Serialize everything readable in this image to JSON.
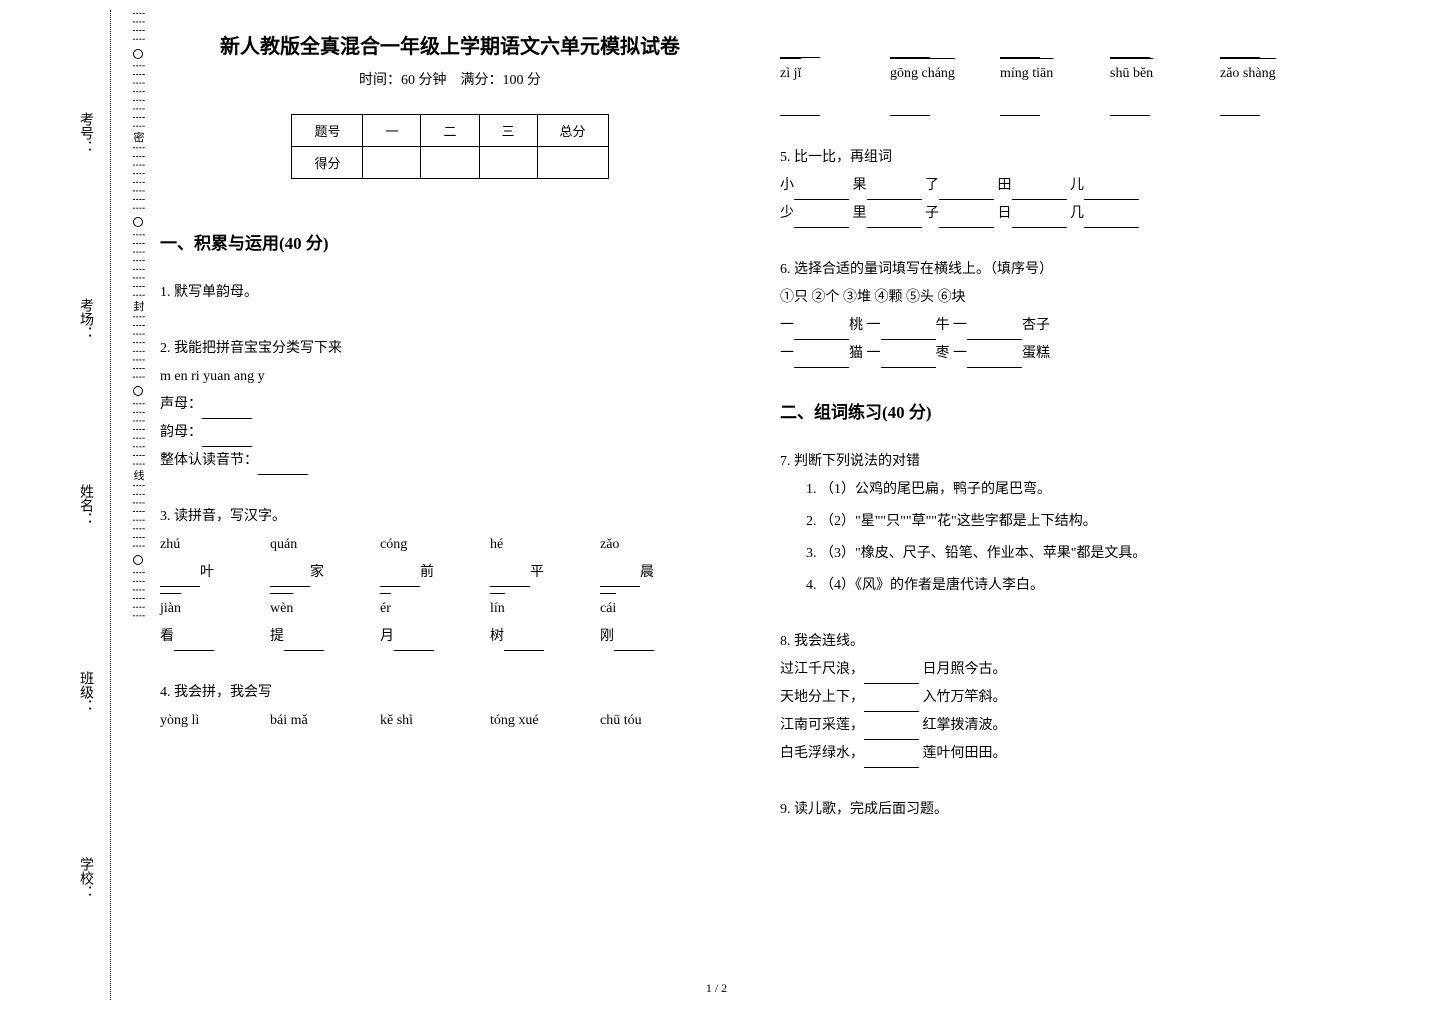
{
  "binding": {
    "labels": [
      "学校：",
      "班级：",
      "姓名：",
      "考场：",
      "考号："
    ],
    "cutline": [
      "密",
      "封",
      "线"
    ]
  },
  "title": "新人教版全真混合一年级上学期语文六单元模拟试卷",
  "subtitle": "时间：60 分钟　满分：100 分",
  "score_table": {
    "headers": [
      "题号",
      "一",
      "二",
      "三",
      "总分"
    ],
    "row_label": "得分"
  },
  "sec1_title": "一、积累与运用(40 分)",
  "sec2_title": "二、组词练习(40 分)",
  "q1": "1.  默写单韵母。",
  "q2": {
    "stem": "2.  我能把拼音宝宝分类写下来",
    "bank": "m en ri yuan ang y",
    "l1": "声母：",
    "l2": "韵母：",
    "l3": "整体认读音节："
  },
  "q3": {
    "stem": "3.  读拼音，写汉字。",
    "row1": [
      {
        "py": "zhú",
        "ch": "叶"
      },
      {
        "py": "quán",
        "ch": "家"
      },
      {
        "py": "cóng",
        "ch": "前"
      },
      {
        "py": "hé",
        "ch": "平"
      },
      {
        "py": "zǎo",
        "ch": "晨"
      }
    ],
    "row2": [
      {
        "py": "jiàn",
        "ch": "看"
      },
      {
        "py": "wèn",
        "ch": "提"
      },
      {
        "py": "ér",
        "ch": "月"
      },
      {
        "py": "lín",
        "ch": "树"
      },
      {
        "py": "cái",
        "ch": "刚"
      }
    ]
  },
  "q4": {
    "stem": "4.  我会拼，我会写",
    "items": [
      "yòng lì",
      "bái mǎ",
      "kě shì",
      "tóng xué",
      "chū tóu",
      "zì jǐ",
      "gōng cháng",
      "míng tiān",
      "shū běn",
      "zǎo shàng"
    ]
  },
  "q5": {
    "stem": "5.  比一比，再组词",
    "pairs_top": [
      "小",
      "果",
      "了",
      "田",
      "儿"
    ],
    "pairs_bot": [
      "少",
      "里",
      "子",
      "日",
      "几"
    ]
  },
  "q6": {
    "stem": "6.  选择合适的量词填写在横线上。（填序号）",
    "bank": "①只 ②个 ③堆 ④颗 ⑤头 ⑥块",
    "line1": [
      "桃",
      "牛",
      "杏子"
    ],
    "line2": [
      "猫",
      "枣",
      "蛋糕"
    ]
  },
  "q7": {
    "stem": "7.  判断下列说法的对错",
    "items": [
      "（1）公鸡的尾巴扁，鸭子的尾巴弯。",
      "（2）\"星\"\"只\"\"草\"\"花\"这些字都是上下结构。",
      "（3）\"橡皮、尺子、铅笔、作业本、苹果\"都是文具。",
      "（4）《风》的作者是唐代诗人李白。"
    ]
  },
  "q8": {
    "stem": "8.  我会连线。",
    "left": [
      "过江千尺浪，",
      "天地分上下，",
      "江南可采莲，",
      "白毛浮绿水，"
    ],
    "right": [
      "日月照今古。",
      "入竹万竿斜。",
      "红掌拨清波。",
      "莲叶何田田。"
    ]
  },
  "q9": "9.  读儿歌，完成后面习题。",
  "pagenum": "1 / 2"
}
